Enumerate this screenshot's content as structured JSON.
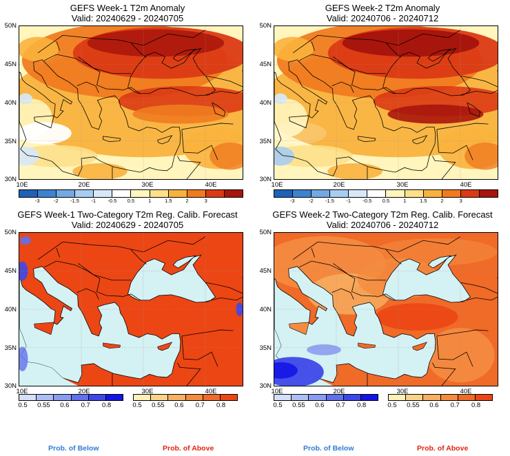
{
  "panels": [
    {
      "id": "p1",
      "title1": "GEFS Week-1 T2m Anomaly",
      "title2": "Valid: 20240629 - 20240705",
      "map_type": "anomaly"
    },
    {
      "id": "p2",
      "title1": "GEFS Week-2 T2m Anomaly",
      "title2": "Valid: 20240706 - 20240712",
      "map_type": "anomaly"
    },
    {
      "id": "p3",
      "title1": "GEFS Week-1 Two-Category T2m Reg. Calib. Forecast",
      "title2": "Valid: 20240629 - 20240705",
      "map_type": "probability"
    },
    {
      "id": "p4",
      "title1": "GEFS Week-2 Two-Category T2m Reg. Calib. Forecast",
      "title2": "Valid: 20240706 - 20240712",
      "map_type": "probability"
    }
  ],
  "lat_labels": [
    "50N",
    "45N",
    "40N",
    "35N",
    "30N"
  ],
  "lon_labels": [
    "10E",
    "20E",
    "30E",
    "40E"
  ],
  "anomaly_scale": {
    "ticks": [
      "-3",
      "-2",
      "-1.5",
      "-1",
      "-0.5",
      "0.5",
      "1",
      "1.5",
      "2",
      "3"
    ],
    "colors": [
      "#1f61b7",
      "#3e83d0",
      "#73a8e2",
      "#a9cdf0",
      "#d7e9f9",
      "#ffffff",
      "#fff5bd",
      "#fde08a",
      "#f9b23d",
      "#f07b1f",
      "#db3a14",
      "#a8150c"
    ]
  },
  "below_scale": {
    "ticks": [
      "0.5",
      "0.55",
      "0.6",
      "0.7",
      "0.8"
    ],
    "colors": [
      "#d6dff8",
      "#aebdf3",
      "#8b9cf0",
      "#6170ec",
      "#3d48e8",
      "#1414e6"
    ]
  },
  "above_scale": {
    "ticks": [
      "0.5",
      "0.55",
      "0.6",
      "0.7",
      "0.8"
    ],
    "colors": [
      "#fff0b8",
      "#fbd28b",
      "#f8b062",
      "#f48c40",
      "#f06a28",
      "#ec4614"
    ]
  },
  "legend": {
    "below_label": "Prob. of Below",
    "above_label": "Prob. of Above",
    "below_color": "#2f7bd6",
    "above_color": "#e02410"
  },
  "map_colors": {
    "sea_prob": "#d4f1f4",
    "land_line": "#000000",
    "grid_line": "#b08a8a"
  }
}
